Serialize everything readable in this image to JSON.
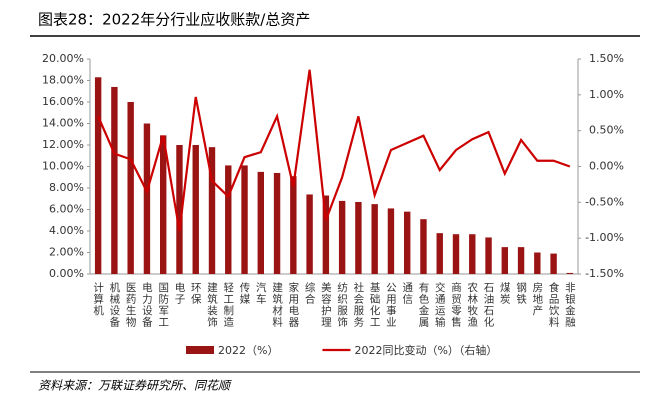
{
  "chart_data": {
    "type": "bar",
    "title": "图表28：2022年分行业应收账款/总资产",
    "source": "资料来源：万联证券研究所、同花顺",
    "categories": [
      "计算机",
      "机械设备",
      "医药生物",
      "电力设备",
      "国防军工",
      "电子",
      "环保",
      "建筑装饰",
      "轻工制造",
      "传媒",
      "汽车",
      "建筑材料",
      "家用电器",
      "综合",
      "美容护理",
      "纺织服饰",
      "社会服务",
      "基础化工",
      "公用事业",
      "通信",
      "有色金属",
      "交通运输",
      "商贸零售",
      "农林牧渔",
      "石油石化",
      "煤炭",
      "钢铁",
      "房地产",
      "食品饮料",
      "非银金融"
    ],
    "series": [
      {
        "name": "2022（%）",
        "type": "bar",
        "color": "#9b1414",
        "values": [
          18.3,
          17.4,
          16.0,
          14.0,
          12.9,
          12.0,
          12.0,
          11.8,
          10.1,
          10.1,
          9.5,
          9.4,
          9.1,
          7.4,
          7.3,
          6.8,
          6.7,
          6.5,
          6.1,
          5.8,
          5.1,
          3.8,
          3.7,
          3.7,
          3.4,
          2.5,
          2.5,
          2.0,
          1.9,
          0.1
        ]
      },
      {
        "name": "2022同比变动（%）（右轴）",
        "type": "line",
        "axis": "y2",
        "color": "#cc0000",
        "values": [
          0.7,
          0.18,
          0.1,
          -0.35,
          0.43,
          -0.9,
          0.97,
          -0.2,
          -0.42,
          0.13,
          0.2,
          0.7,
          -0.28,
          1.35,
          -0.75,
          -0.15,
          0.7,
          -0.4,
          0.23,
          0.33,
          0.43,
          -0.05,
          0.23,
          0.38,
          0.48,
          -0.1,
          0.37,
          0.08,
          0.08,
          0.0
        ]
      }
    ],
    "ylim": [
      0,
      20
    ],
    "yticks": [
      {
        "value": 0,
        "label": "0.00%"
      },
      {
        "value": 2,
        "label": "2.00%"
      },
      {
        "value": 4,
        "label": "4.00%"
      },
      {
        "value": 6,
        "label": "6.00%"
      },
      {
        "value": 8,
        "label": "8.00%"
      },
      {
        "value": 10,
        "label": "10.00%"
      },
      {
        "value": 12,
        "label": "12.00%"
      },
      {
        "value": 14,
        "label": "14.00%"
      },
      {
        "value": 16,
        "label": "16.00%"
      },
      {
        "value": 18,
        "label": "18.00%"
      },
      {
        "value": 20,
        "label": "20.00%"
      }
    ],
    "y2lim": [
      -1.5,
      1.5
    ],
    "y2ticks": [
      {
        "value": -1.5,
        "label": "-1.50%"
      },
      {
        "value": -1,
        "label": "-1.00%"
      },
      {
        "value": -0.5,
        "label": "-0.50%"
      },
      {
        "value": 0,
        "label": "0.00%"
      },
      {
        "value": 0.5,
        "label": "0.50%"
      },
      {
        "value": 1,
        "label": "1.00%"
      },
      {
        "value": 1.5,
        "label": "1.50%"
      }
    ]
  }
}
